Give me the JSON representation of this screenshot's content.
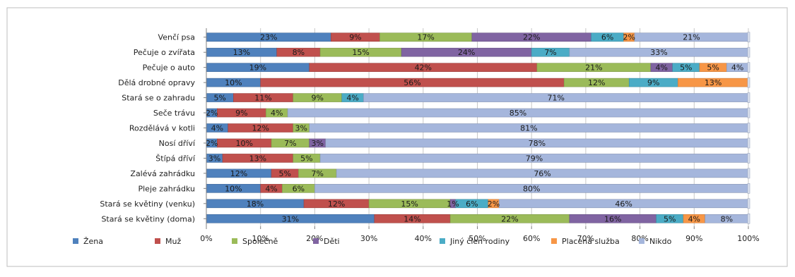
{
  "chart_data": {
    "type": "bar",
    "orientation": "horizontal",
    "stacked": "percent",
    "categories": [
      "Venčí psa",
      "Pečuje o zvířata",
      "Pečuje o auto",
      "Dělá drobné opravy",
      "Stará se o zahradu",
      "Seče trávu",
      "Rozdělává v kotli",
      "Nosí dříví",
      "Štípá dříví",
      "Zalévá zahrádku",
      "Pleje zahrádku",
      "Stará se květiny (venku)",
      "Stará se květiny (doma)"
    ],
    "series": [
      {
        "name": "Žena",
        "color": "#4f81bd",
        "values": [
          23,
          13,
          19,
          10,
          5,
          2,
          4,
          2,
          3,
          12,
          10,
          18,
          31
        ]
      },
      {
        "name": "Muž",
        "color": "#c0504d",
        "values": [
          9,
          8,
          42,
          56,
          11,
          9,
          12,
          10,
          13,
          5,
          4,
          12,
          14
        ]
      },
      {
        "name": "Společně",
        "color": "#9bbb59",
        "values": [
          17,
          15,
          21,
          12,
          9,
          4,
          3,
          7,
          5,
          7,
          6,
          15,
          22
        ]
      },
      {
        "name": "Děti",
        "color": "#8064a2",
        "values": [
          22,
          24,
          4,
          0,
          0,
          0,
          0,
          3,
          0,
          0,
          0,
          1,
          16
        ]
      },
      {
        "name": "Jiný člen rodiny",
        "color": "#4bacc6",
        "values": [
          6,
          7,
          5,
          9,
          4,
          0,
          0,
          0,
          0,
          0,
          0,
          6,
          5
        ]
      },
      {
        "name": "Placená služba",
        "color": "#f79646",
        "values": [
          2,
          0,
          5,
          13,
          0,
          0,
          0,
          0,
          0,
          0,
          0,
          2,
          4
        ]
      },
      {
        "name": "Nikdo",
        "color": "#a5b6dc",
        "values": [
          21,
          33,
          4,
          0,
          71,
          85,
          81,
          78,
          79,
          76,
          80,
          46,
          8
        ]
      }
    ],
    "xlim": [
      0,
      100
    ],
    "xticks": [
      "0%",
      "10%",
      "20%",
      "30%",
      "40%",
      "50%",
      "60%",
      "70%",
      "80%",
      "90%",
      "100%"
    ],
    "grid": true,
    "legend": "bottom"
  }
}
